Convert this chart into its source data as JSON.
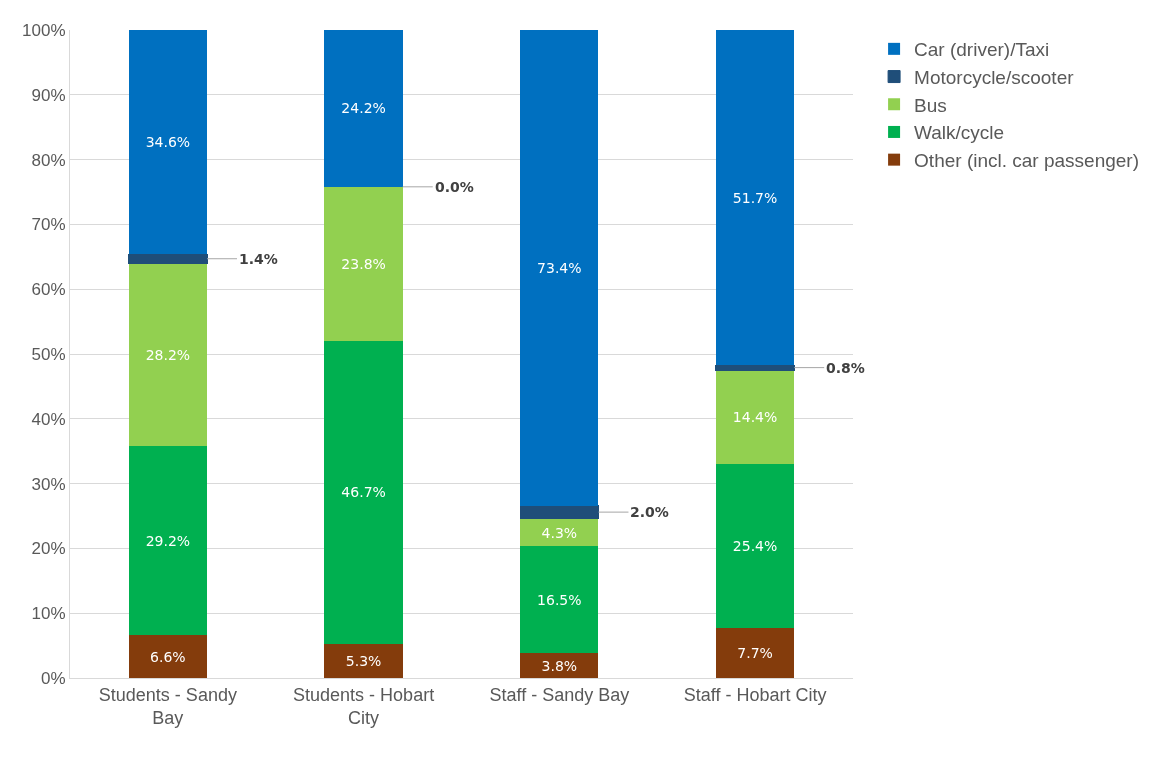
{
  "chart_data": {
    "type": "bar",
    "stacked": true,
    "categories": [
      "Students - Sandy Bay",
      "Students - Hobart City",
      "Staff - Sandy Bay",
      "Staff - Hobart City"
    ],
    "series": [
      {
        "name": "Other (incl. car passenger)",
        "color": "#843c0c",
        "values": [
          6.6,
          5.3,
          3.8,
          7.7
        ],
        "value_labels": [
          "6.6%",
          "5.3%",
          "3.8%",
          "7.7%"
        ]
      },
      {
        "name": "Walk/cycle",
        "color": "#00b050",
        "values": [
          29.2,
          46.7,
          16.5,
          25.4
        ],
        "value_labels": [
          "29.2%",
          "46.7%",
          "16.5%",
          "25.4%"
        ]
      },
      {
        "name": "Bus",
        "color": "#92d050",
        "values": [
          28.2,
          23.8,
          4.3,
          14.4
        ],
        "value_labels": [
          "28.2%",
          "23.8%",
          "4.3%",
          "14.4%"
        ]
      },
      {
        "name": "Motorcycle/scooter",
        "color": "#1f4e79",
        "values": [
          1.4,
          0.0,
          2.0,
          0.8
        ],
        "value_labels": [
          "1.4%",
          "0.0%",
          "2.0%",
          "0.8%"
        ]
      },
      {
        "name": "Car (driver)/Taxi",
        "color": "#0070c0",
        "values": [
          34.6,
          24.2,
          73.4,
          51.7
        ],
        "value_labels": [
          "34.6%",
          "24.2%",
          "73.4%",
          "51.7%"
        ]
      }
    ],
    "ylim": [
      0,
      100
    ],
    "yticks": [
      {
        "value": 0,
        "label": "0%"
      },
      {
        "value": 10,
        "label": "10%"
      },
      {
        "value": 20,
        "label": "20%"
      },
      {
        "value": 30,
        "label": "30%"
      },
      {
        "value": 40,
        "label": "40%"
      },
      {
        "value": 50,
        "label": "50%"
      },
      {
        "value": 60,
        "label": "60%"
      },
      {
        "value": 70,
        "label": "70%"
      },
      {
        "value": 80,
        "label": "80%"
      },
      {
        "value": 90,
        "label": "90%"
      },
      {
        "value": 100,
        "label": "100%"
      }
    ],
    "grid": "y",
    "legend": "right"
  }
}
